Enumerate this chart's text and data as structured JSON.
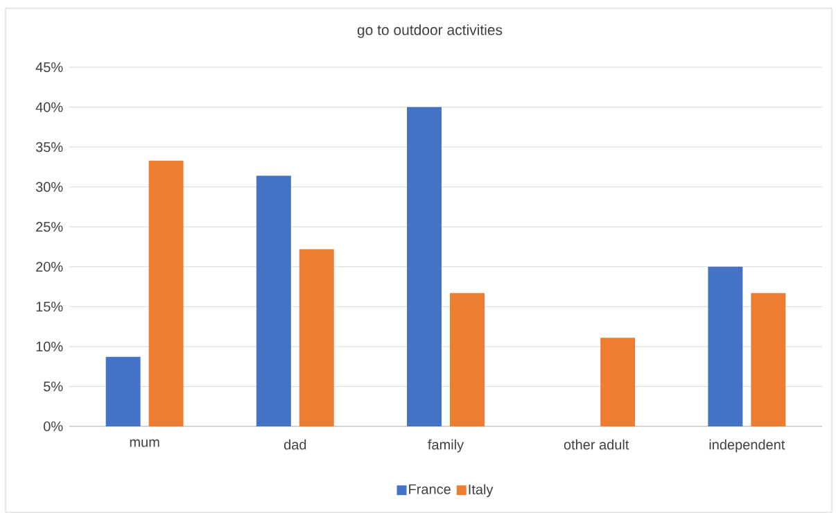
{
  "chart_data": {
    "type": "bar",
    "title": "go to outdoor activities",
    "categories": [
      "mum",
      "dad",
      "family",
      "other adult",
      "independent"
    ],
    "series": [
      {
        "name": "France",
        "color": "#4472c4",
        "values": [
          8.7,
          31.4,
          40,
          0,
          20
        ]
      },
      {
        "name": "Italy",
        "color": "#ed7d31",
        "values": [
          33.3,
          22.2,
          16.7,
          11.1,
          16.7
        ]
      }
    ],
    "ylim": [
      0,
      45
    ],
    "yticks": [
      {
        "value": 0,
        "label": "0%"
      },
      {
        "value": 5,
        "label": "5%"
      },
      {
        "value": 10,
        "label": "10%"
      },
      {
        "value": 15,
        "label": "15%"
      },
      {
        "value": 20,
        "label": "20%"
      },
      {
        "value": 25,
        "label": "25%"
      },
      {
        "value": 30,
        "label": "30%"
      },
      {
        "value": 35,
        "label": "35%"
      },
      {
        "value": 40,
        "label": "40%"
      },
      {
        "value": 45,
        "label": "45%"
      }
    ],
    "grid": "y",
    "legend": "bottom"
  }
}
